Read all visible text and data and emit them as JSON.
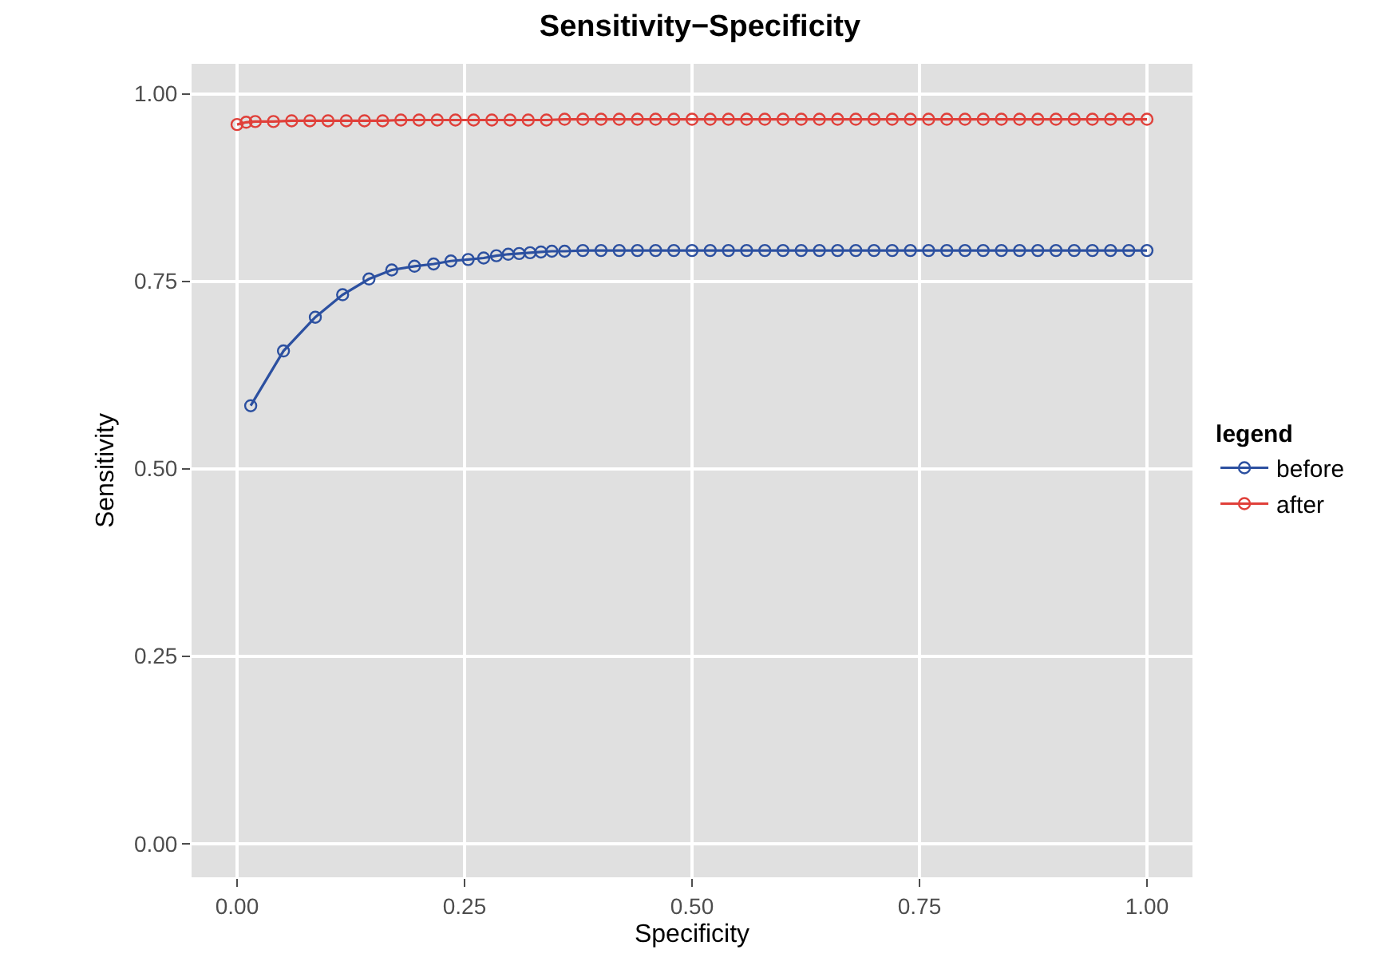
{
  "chart_data": {
    "type": "line",
    "title": "Sensitivity−Specificity",
    "xlabel": "Specificity",
    "ylabel": "Sensitivity",
    "legend_title": "legend",
    "legend": "right",
    "grid": true,
    "marker": "circle",
    "line_style": "solid",
    "xlim": [
      -0.05,
      1.05
    ],
    "ylim": [
      -0.045,
      1.04
    ],
    "xticks": [
      {
        "value": 0,
        "label": "0.00"
      },
      {
        "value": 0.25,
        "label": "0.25"
      },
      {
        "value": 0.5,
        "label": "0.50"
      },
      {
        "value": 0.75,
        "label": "0.75"
      },
      {
        "value": 1,
        "label": "1.00"
      }
    ],
    "yticks": [
      {
        "value": 0,
        "label": "0.00"
      },
      {
        "value": 0.25,
        "label": "0.25"
      },
      {
        "value": 0.5,
        "label": "0.50"
      },
      {
        "value": 0.75,
        "label": "0.75"
      },
      {
        "value": 1,
        "label": "1.00"
      }
    ],
    "series": [
      {
        "name": "before",
        "color": "#2c50a0",
        "x": [
          0.015,
          0.051,
          0.086,
          0.116,
          0.145,
          0.17,
          0.195,
          0.216,
          0.235,
          0.254,
          0.271,
          0.285,
          0.298,
          0.31,
          0.322,
          0.334,
          0.346,
          0.36,
          0.38,
          0.4,
          0.42,
          0.44,
          0.46,
          0.48,
          0.5,
          0.52,
          0.54,
          0.56,
          0.58,
          0.6,
          0.62,
          0.64,
          0.66,
          0.68,
          0.7,
          0.72,
          0.74,
          0.76,
          0.78,
          0.8,
          0.82,
          0.84,
          0.86,
          0.88,
          0.9,
          0.92,
          0.94,
          0.96,
          0.98,
          1.0
        ],
        "values": [
          0.584,
          0.657,
          0.702,
          0.732,
          0.753,
          0.765,
          0.77,
          0.773,
          0.777,
          0.779,
          0.781,
          0.784,
          0.786,
          0.787,
          0.788,
          0.789,
          0.79,
          0.79,
          0.791,
          0.791,
          0.791,
          0.791,
          0.791,
          0.791,
          0.791,
          0.791,
          0.791,
          0.791,
          0.791,
          0.791,
          0.791,
          0.791,
          0.791,
          0.791,
          0.791,
          0.791,
          0.791,
          0.791,
          0.791,
          0.791,
          0.791,
          0.791,
          0.791,
          0.791,
          0.791,
          0.791,
          0.791,
          0.791,
          0.791,
          0.791
        ]
      },
      {
        "name": "after",
        "color": "#e0403a",
        "x": [
          0.0,
          0.01,
          0.02,
          0.04,
          0.06,
          0.08,
          0.1,
          0.12,
          0.14,
          0.16,
          0.18,
          0.2,
          0.22,
          0.24,
          0.26,
          0.28,
          0.3,
          0.32,
          0.34,
          0.36,
          0.38,
          0.4,
          0.42,
          0.44,
          0.46,
          0.48,
          0.5,
          0.52,
          0.54,
          0.56,
          0.58,
          0.6,
          0.62,
          0.64,
          0.66,
          0.68,
          0.7,
          0.72,
          0.74,
          0.76,
          0.78,
          0.8,
          0.82,
          0.84,
          0.86,
          0.88,
          0.9,
          0.92,
          0.94,
          0.96,
          0.98,
          1.0
        ],
        "values": [
          0.959,
          0.962,
          0.963,
          0.963,
          0.964,
          0.964,
          0.964,
          0.964,
          0.964,
          0.964,
          0.965,
          0.965,
          0.965,
          0.965,
          0.965,
          0.965,
          0.965,
          0.965,
          0.965,
          0.966,
          0.966,
          0.966,
          0.966,
          0.966,
          0.966,
          0.966,
          0.966,
          0.966,
          0.966,
          0.966,
          0.966,
          0.966,
          0.966,
          0.966,
          0.966,
          0.966,
          0.966,
          0.966,
          0.966,
          0.966,
          0.966,
          0.966,
          0.966,
          0.966,
          0.966,
          0.966,
          0.966,
          0.966,
          0.966,
          0.966,
          0.966,
          0.966
        ]
      }
    ]
  }
}
